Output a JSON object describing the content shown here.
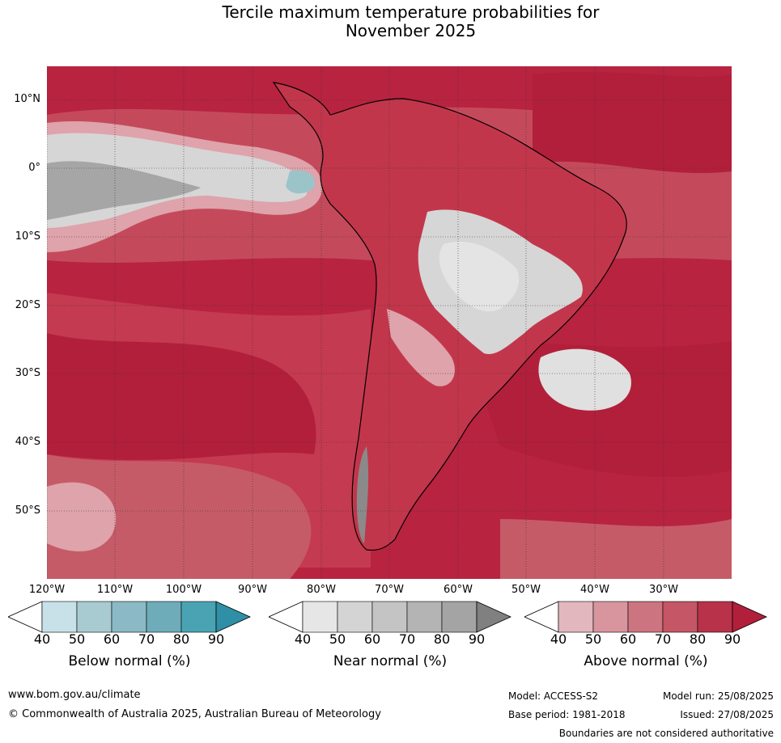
{
  "title_line1": "Tercile maximum temperature probabilities for",
  "title_line2": "November 2025",
  "lat_labels": [
    "10°N",
    "0°",
    "10°S",
    "20°S",
    "30°S",
    "40°S",
    "50°S"
  ],
  "lon_labels": [
    "120°W",
    "110°W",
    "100°W",
    "90°W",
    "80°W",
    "70°W",
    "60°W",
    "50°W",
    "40°W",
    "30°W"
  ],
  "colorbars": [
    {
      "title": "Below normal (%)",
      "ticks": [
        "40",
        "50",
        "60",
        "70",
        "80",
        "90"
      ],
      "colors": [
        "#ffffff",
        "#c8e1e8",
        "#a8cbd2",
        "#8bbac6",
        "#6eacba",
        "#4aa3b3",
        "#2e8fa6"
      ]
    },
    {
      "title": "Near normal (%)",
      "ticks": [
        "40",
        "50",
        "60",
        "70",
        "80",
        "90"
      ],
      "colors": [
        "#ffffff",
        "#e6e6e6",
        "#d4d4d4",
        "#c4c4c4",
        "#b4b4b4",
        "#a4a4a4",
        "#808080"
      ]
    },
    {
      "title": "Above normal (%)",
      "ticks": [
        "40",
        "50",
        "60",
        "70",
        "80",
        "90"
      ],
      "colors": [
        "#ffffff",
        "#e2b7bd",
        "#d8959e",
        "#cc7480",
        "#c45665",
        "#b8324a",
        "#b21f3a"
      ]
    }
  ],
  "footer": {
    "url": "www.bom.gov.au/climate",
    "copyright": "© Commonwealth of Australia 2025, Australian Bureau of Meteorology",
    "model": "Model: ACCESS-S2",
    "base_period": "Base period: 1981-2018",
    "model_run": "Model run: 25/08/2025",
    "issued": "Issued: 27/08/2025",
    "disclaimer": "Boundaries are not considered authoritative"
  },
  "map_colors": {
    "above_90": "#b21f3a",
    "above_80": "#c13547",
    "above_70": "#c65b68",
    "above_60": "#d17a85",
    "above_50": "#dea3ab",
    "near_60": "#d6d6d6",
    "near_80": "#a6a6a6",
    "white": "#e8e8e8",
    "below_60": "#9bc4c9"
  }
}
